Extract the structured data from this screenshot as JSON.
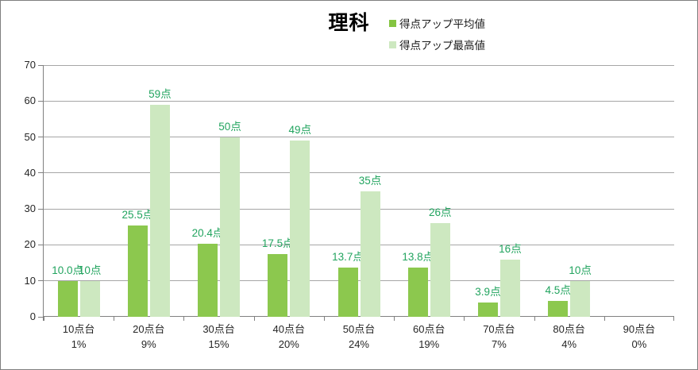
{
  "title": "理科",
  "legend": [
    {
      "label": "得点アップ平均値",
      "color": "#84c441"
    },
    {
      "label": "得点アップ最高値",
      "color": "#cde8c0"
    }
  ],
  "chart_data": {
    "type": "bar",
    "title": "理科",
    "categories": [
      "10点台",
      "20点台",
      "30点台",
      "40点台",
      "50点台",
      "60点台",
      "70点台",
      "80点台",
      "90点台"
    ],
    "category_percents": [
      "1%",
      "9%",
      "15%",
      "20%",
      "24%",
      "19%",
      "7%",
      "4%",
      "0%"
    ],
    "series": [
      {
        "name": "得点アップ平均値",
        "color": "#8cc84e",
        "values": [
          10.0,
          25.5,
          20.4,
          17.5,
          13.7,
          13.8,
          3.9,
          4.5,
          null
        ],
        "labels": [
          "10.0点",
          "25.5点",
          "20.4点",
          "17.5点",
          "13.7点",
          "13.8点",
          "3.9点",
          "4.5点",
          ""
        ]
      },
      {
        "name": "得点アップ最高値",
        "color": "#cde8c0",
        "values": [
          10,
          59,
          50,
          49,
          35,
          26,
          16,
          10,
          null
        ],
        "labels": [
          "10点",
          "59点",
          "50点",
          "49点",
          "35点",
          "26点",
          "16点",
          "10点",
          ""
        ]
      }
    ],
    "ylim": [
      0,
      70
    ],
    "yticks": [
      0,
      10,
      20,
      30,
      40,
      50,
      60,
      70
    ],
    "grid": true,
    "legend_position": "top",
    "data_label_color": "#22a45f"
  }
}
